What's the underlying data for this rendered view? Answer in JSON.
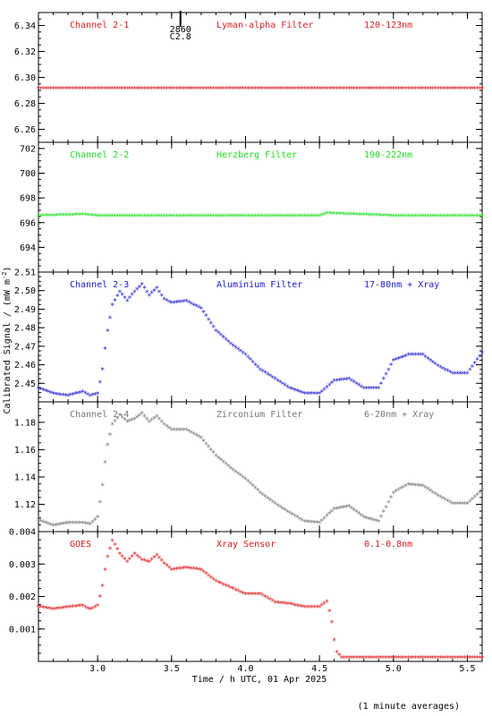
{
  "x_axis": {
    "label": "Time / h UTC, 01 Apr 2025",
    "range": [
      2.6,
      5.6
    ],
    "ticks": [
      "3.0",
      "3.5",
      "4.0",
      "4.5",
      "5.0",
      "5.5"
    ],
    "tick_values": [
      3.0,
      3.5,
      4.0,
      4.5,
      5.0,
      5.5
    ]
  },
  "y_axis_label": "Calibrated Signal / (mW m",
  "y_axis_label_sup": "-2",
  "y_axis_label_end": ")",
  "footer_note": "(1 minute averages)",
  "flare_marker": {
    "time": 3.56,
    "label_top": "2860",
    "label_bottom": "C2.8"
  },
  "panels": [
    {
      "channel": "Channel 2-1",
      "filter": "Lyman-alpha Filter",
      "band": "120-123nm",
      "color": "#e01e1e",
      "ylim": [
        6.25,
        6.35
      ],
      "yticks": [
        "6.26",
        "6.28",
        "6.30",
        "6.32",
        "6.34"
      ],
      "ytick_values": [
        6.26,
        6.28,
        6.3,
        6.32,
        6.34
      ]
    },
    {
      "channel": "Channel 2-2",
      "filter": "Herzberg Filter",
      "band": "190-222nm",
      "color": "#22dd22",
      "ylim": [
        692.0,
        702.5
      ],
      "yticks": [
        "694",
        "696",
        "698",
        "700",
        "702"
      ],
      "ytick_values": [
        694,
        696,
        698,
        700,
        702
      ]
    },
    {
      "channel": "Channel 2-3",
      "filter": "Aluminium Filter",
      "band": "17-80nm + Xray",
      "color": "#1a1acc",
      "ylim": [
        2.44,
        2.51
      ],
      "yticks": [
        "2.45",
        "2.46",
        "2.47",
        "2.48",
        "2.49",
        "2.50",
        "2.51"
      ],
      "ytick_values": [
        2.45,
        2.46,
        2.47,
        2.48,
        2.49,
        2.5,
        2.51
      ]
    },
    {
      "channel": "Channel 2-4",
      "filter": "Zirconium Filter",
      "band": "6-20nm + Xray",
      "color": "#777777",
      "ylim": [
        1.1,
        1.195
      ],
      "yticks": [
        "1.12",
        "1.14",
        "1.16",
        "1.18"
      ],
      "ytick_values": [
        1.12,
        1.14,
        1.16,
        1.18
      ]
    },
    {
      "channel": "GOES",
      "filter": "Xray Sensor",
      "band": "0.1-0.8nm",
      "color": "#dd1a1a",
      "ylim": [
        0.0,
        0.004
      ],
      "yticks": [
        "0.001",
        "0.002",
        "0.003",
        "0.004"
      ],
      "ytick_values": [
        0.001,
        0.002,
        0.003,
        0.004
      ]
    }
  ],
  "chart_data": [
    {
      "type": "scatter",
      "title": "Channel 2-1",
      "series": [
        {
          "name": "Lyman-alpha Filter",
          "color": "#e01e1e",
          "x": [
            2.6,
            3.0,
            3.5,
            4.0,
            4.5,
            5.0,
            5.6
          ],
          "y": [
            6.291,
            6.291,
            6.291,
            6.291,
            6.291,
            6.291,
            6.291
          ]
        }
      ],
      "xlim": [
        2.6,
        5.6
      ],
      "ylim": [
        6.25,
        6.35
      ]
    },
    {
      "type": "scatter",
      "title": "Channel 2-2",
      "series": [
        {
          "name": "Herzberg Filter",
          "color": "#22dd22",
          "x": [
            2.6,
            2.9,
            3.0,
            3.5,
            4.0,
            4.5,
            4.55,
            5.0,
            5.6
          ],
          "y": [
            696.5,
            696.6,
            696.5,
            696.5,
            696.5,
            696.5,
            696.7,
            696.5,
            696.5
          ]
        }
      ],
      "xlim": [
        2.6,
        5.6
      ],
      "ylim": [
        692.0,
        702.5
      ]
    },
    {
      "type": "scatter",
      "title": "Channel 2-3",
      "series": [
        {
          "name": "Aluminium Filter",
          "color": "#1a1acc",
          "x": [
            2.6,
            2.7,
            2.8,
            2.9,
            2.95,
            3.0,
            3.03,
            3.06,
            3.1,
            3.15,
            3.2,
            3.25,
            3.3,
            3.35,
            3.4,
            3.45,
            3.5,
            3.6,
            3.7,
            3.8,
            3.9,
            4.0,
            4.1,
            4.2,
            4.3,
            4.4,
            4.5,
            4.6,
            4.7,
            4.8,
            4.9,
            5.0,
            5.1,
            5.2,
            5.3,
            5.4,
            5.5,
            5.6
          ],
          "y": [
            2.447,
            2.444,
            2.443,
            2.445,
            2.443,
            2.444,
            2.455,
            2.475,
            2.492,
            2.499,
            2.494,
            2.499,
            2.503,
            2.497,
            2.501,
            2.495,
            2.493,
            2.494,
            2.49,
            2.478,
            2.471,
            2.465,
            2.457,
            2.452,
            2.447,
            2.444,
            2.444,
            2.451,
            2.452,
            2.447,
            2.447,
            2.462,
            2.465,
            2.465,
            2.459,
            2.455,
            2.455,
            2.466
          ]
        }
      ],
      "xlim": [
        2.6,
        5.6
      ],
      "ylim": [
        2.44,
        2.51
      ]
    },
    {
      "type": "scatter",
      "title": "Channel 2-4",
      "series": [
        {
          "name": "Zirconium Filter",
          "color": "#777777",
          "x": [
            2.6,
            2.7,
            2.8,
            2.9,
            2.95,
            3.0,
            3.03,
            3.06,
            3.1,
            3.15,
            3.2,
            3.25,
            3.3,
            3.35,
            3.4,
            3.45,
            3.5,
            3.6,
            3.7,
            3.8,
            3.9,
            4.0,
            4.1,
            4.2,
            4.3,
            4.4,
            4.5,
            4.6,
            4.7,
            4.8,
            4.9,
            5.0,
            5.1,
            5.2,
            5.3,
            5.4,
            5.5,
            5.6
          ],
          "y": [
            1.108,
            1.104,
            1.106,
            1.106,
            1.105,
            1.11,
            1.13,
            1.16,
            1.178,
            1.185,
            1.18,
            1.182,
            1.186,
            1.18,
            1.184,
            1.178,
            1.174,
            1.174,
            1.168,
            1.155,
            1.146,
            1.138,
            1.128,
            1.12,
            1.113,
            1.107,
            1.106,
            1.116,
            1.118,
            1.11,
            1.107,
            1.128,
            1.134,
            1.133,
            1.126,
            1.12,
            1.12,
            1.13
          ]
        }
      ],
      "xlim": [
        2.6,
        5.6
      ],
      "ylim": [
        1.1,
        1.195
      ]
    },
    {
      "type": "scatter",
      "title": "GOES",
      "series": [
        {
          "name": "Xray Sensor",
          "color": "#dd1a1a",
          "x": [
            2.6,
            2.7,
            2.8,
            2.9,
            2.95,
            3.0,
            3.03,
            3.06,
            3.1,
            3.15,
            3.2,
            3.25,
            3.3,
            3.35,
            3.4,
            3.45,
            3.5,
            3.6,
            3.7,
            3.8,
            3.9,
            4.0,
            4.1,
            4.2,
            4.3,
            4.4,
            4.5,
            4.55,
            4.58,
            4.61,
            4.65,
            4.8,
            5.0,
            5.2,
            5.4,
            5.6
          ],
          "y": [
            0.00167,
            0.00159,
            0.00165,
            0.0017,
            0.00158,
            0.0017,
            0.0022,
            0.0031,
            0.0037,
            0.0033,
            0.00305,
            0.0033,
            0.0031,
            0.00305,
            0.00325,
            0.003,
            0.0028,
            0.00287,
            0.0028,
            0.00245,
            0.00225,
            0.00205,
            0.00205,
            0.0018,
            0.00175,
            0.00165,
            0.00165,
            0.00182,
            0.0013,
            0.0003,
            0.0001,
            0.0001,
            0.0001,
            0.0001,
            0.0001,
            0.0001
          ]
        }
      ],
      "xlim": [
        2.6,
        5.6
      ],
      "ylim": [
        0.0,
        0.004
      ]
    }
  ]
}
